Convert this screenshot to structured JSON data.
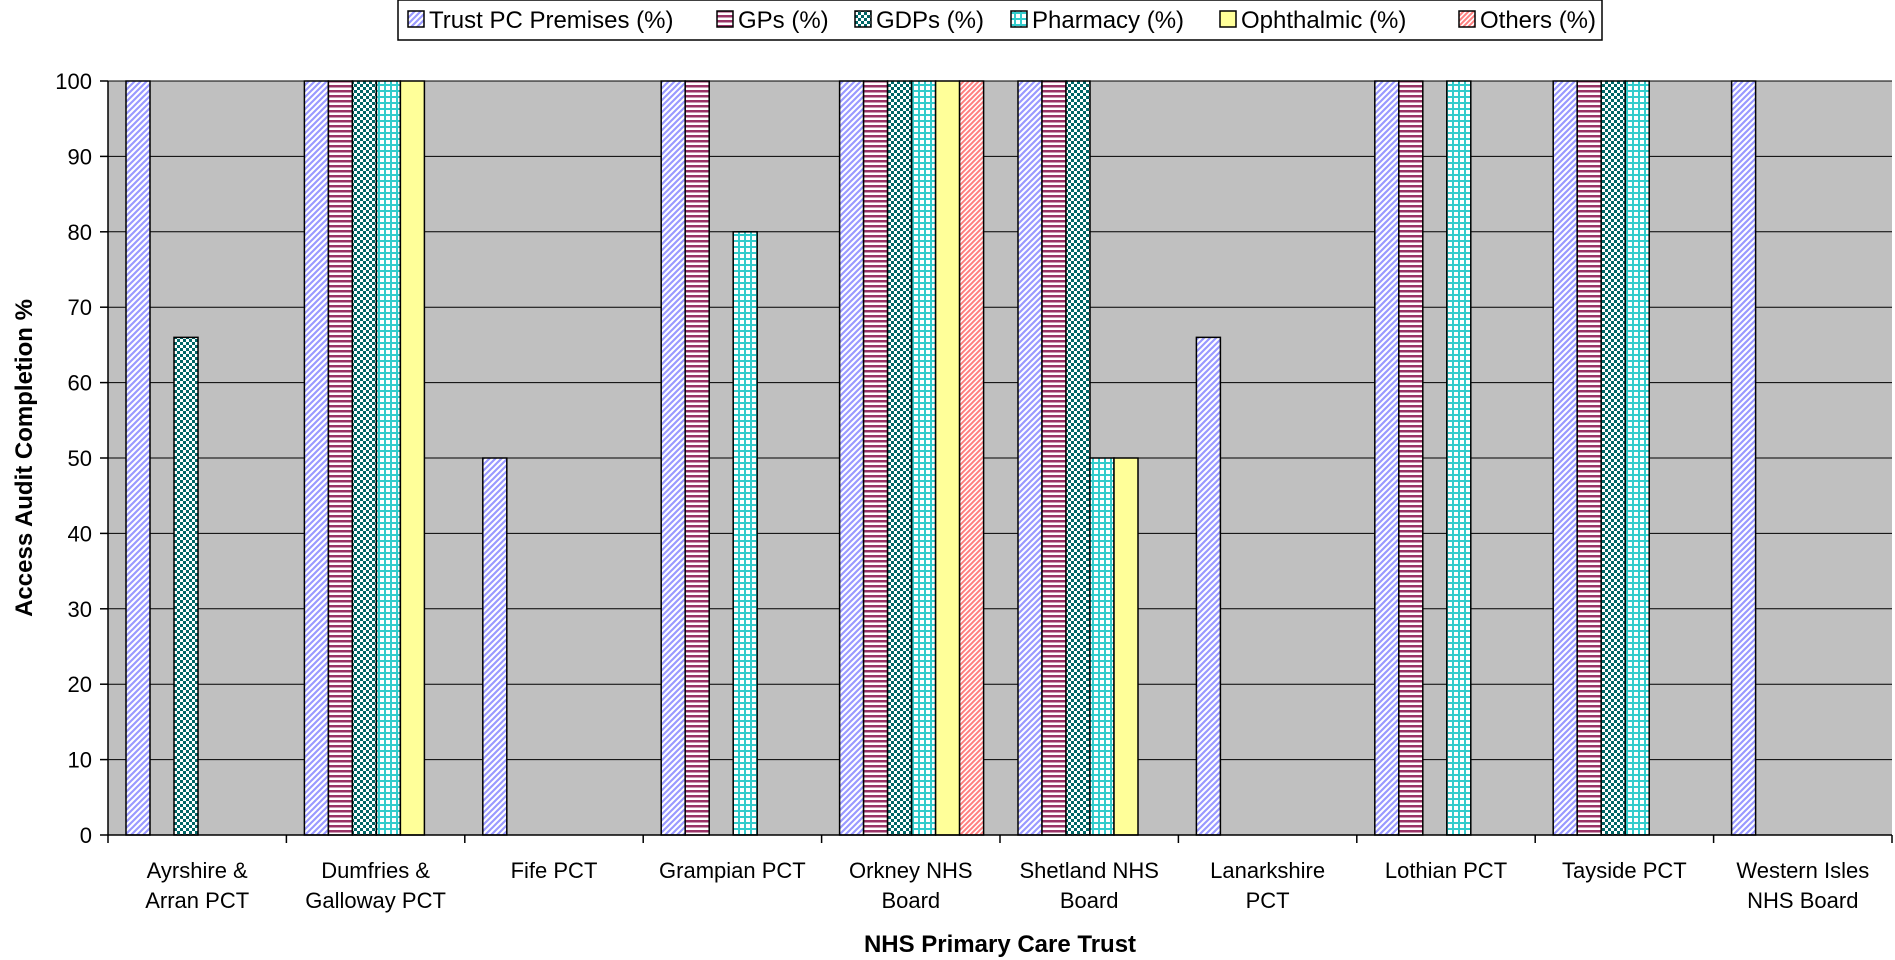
{
  "chart_data": {
    "type": "bar",
    "xlabel": "NHS Primary Care Trust",
    "ylabel": "Access Audit Completion %",
    "ylim": [
      0,
      100
    ],
    "yticks": [
      0,
      10,
      20,
      30,
      40,
      50,
      60,
      70,
      80,
      90,
      100
    ],
    "grid": true,
    "legend_position": "top",
    "categories": [
      [
        "Ayrshire &",
        "Arran PCT"
      ],
      [
        "Dumfries &",
        "Galloway PCT"
      ],
      [
        "Fife PCT"
      ],
      [
        "Grampian PCT"
      ],
      [
        "Orkney NHS",
        "Board"
      ],
      [
        "Shetland NHS",
        "Board"
      ],
      [
        "Lanarkshire",
        "PCT"
      ],
      [
        "Lothian PCT"
      ],
      [
        "Tayside PCT"
      ],
      [
        "Western Isles",
        "NHS Board"
      ]
    ],
    "series": [
      {
        "name": "Trust PC Premises (%)",
        "color": "#9999ff",
        "pattern": "diagonal",
        "values": [
          100,
          100,
          50,
          100,
          100,
          100,
          66,
          100,
          100,
          100
        ]
      },
      {
        "name": "GPs (%)",
        "color": "#993366",
        "pattern": "horizontal",
        "values": [
          0,
          100,
          0,
          100,
          100,
          100,
          0,
          100,
          100,
          0
        ]
      },
      {
        "name": "GDPs (%)",
        "color": "#006666",
        "pattern": "checker",
        "values": [
          66,
          100,
          0,
          0,
          100,
          100,
          0,
          0,
          100,
          0
        ]
      },
      {
        "name": "Pharmacy (%)",
        "color": "#33cccc",
        "pattern": "grid",
        "values": [
          0,
          100,
          0,
          80,
          100,
          50,
          0,
          100,
          100,
          0
        ]
      },
      {
        "name": "Ophthalmic (%)",
        "color": "#ffff99",
        "pattern": "solid",
        "values": [
          0,
          100,
          0,
          0,
          100,
          50,
          0,
          0,
          0,
          0
        ]
      },
      {
        "name": "Others (%)",
        "color": "#ff8080",
        "pattern": "diagonal-dense",
        "values": [
          0,
          0,
          0,
          0,
          100,
          0,
          0,
          0,
          0,
          0
        ]
      }
    ],
    "plot_background": "#c0c0c0"
  }
}
